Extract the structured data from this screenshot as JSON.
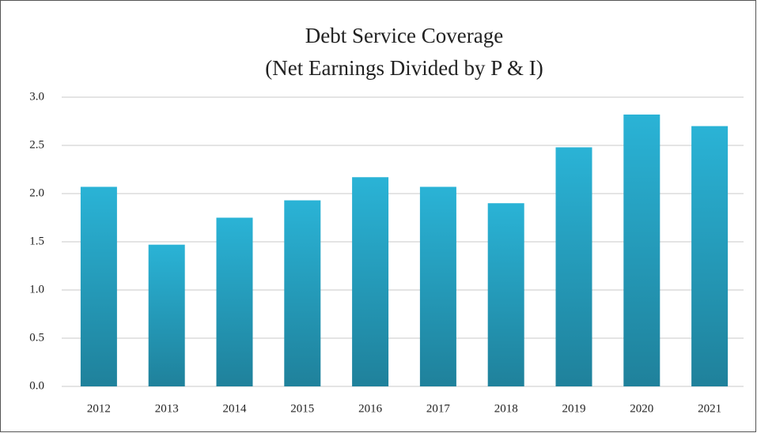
{
  "chart_data": {
    "type": "bar",
    "title": "Debt Service Coverage",
    "subtitle": "(Net Earnings Divided by P & I)",
    "categories": [
      "2012",
      "2013",
      "2014",
      "2015",
      "2016",
      "2017",
      "2018",
      "2019",
      "2020",
      "2021"
    ],
    "values": [
      2.07,
      1.47,
      1.75,
      1.93,
      2.17,
      2.07,
      1.9,
      2.48,
      2.82,
      2.7
    ],
    "color": "#2ab3d6",
    "ylim": [
      0,
      3
    ],
    "yticks": [
      {
        "value": 0,
        "label": "0.0"
      },
      0.5,
      {
        "value": 1,
        "label": "1.0"
      },
      1.5,
      {
        "value": 2,
        "label": "2.0"
      },
      2.5,
      {
        "value": 3,
        "label": "3.0"
      }
    ],
    "grid": true
  }
}
